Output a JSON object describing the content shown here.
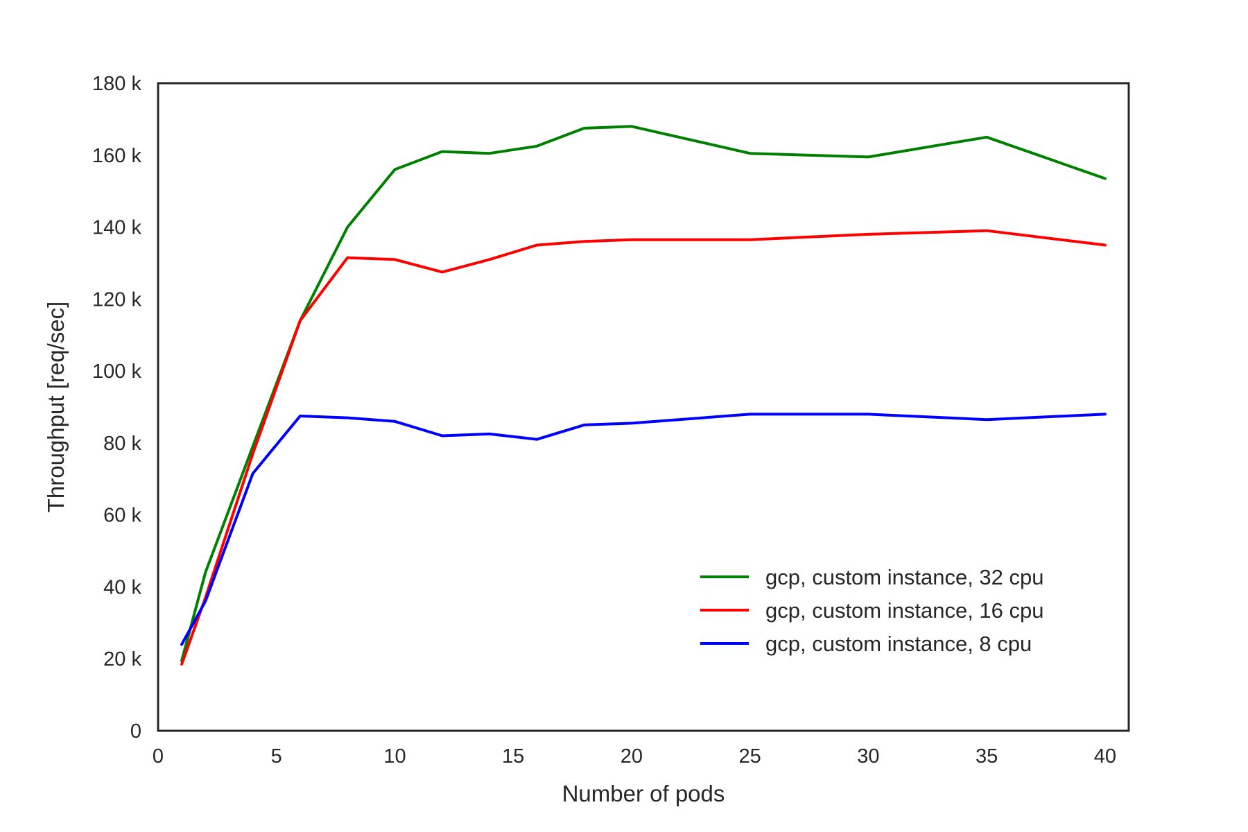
{
  "chart_data": {
    "type": "line",
    "title": "",
    "xlabel": "Number of pods",
    "ylabel": "Throughput [req/sec]",
    "xlim": [
      0,
      41
    ],
    "ylim": [
      0,
      180000
    ],
    "xticks": [
      0,
      5,
      10,
      15,
      20,
      25,
      30,
      35,
      40
    ],
    "xtick_labels": [
      "0",
      "5",
      "10",
      "15",
      "20",
      "25",
      "30",
      "35",
      "40"
    ],
    "yticks": [
      0,
      20000,
      40000,
      60000,
      80000,
      100000,
      120000,
      140000,
      160000,
      180000
    ],
    "ytick_labels": [
      "0",
      "20 k",
      "40 k",
      "60 k",
      "80 k",
      "100 k",
      "120 k",
      "140 k",
      "160 k",
      "180 k"
    ],
    "grid": false,
    "legend_position": "lower-right",
    "series": [
      {
        "name": "gcp, custom instance, 32 cpu",
        "color": "#008000",
        "x": [
          1,
          2,
          4,
          6,
          8,
          10,
          12,
          14,
          16,
          18,
          20,
          25,
          30,
          35,
          40
        ],
        "y": [
          19500,
          44000,
          79000,
          114000,
          140000,
          156000,
          161000,
          160500,
          162500,
          167500,
          168000,
          160500,
          159500,
          165000,
          153500
        ]
      },
      {
        "name": "gcp, custom instance, 16 cpu",
        "color": "#ff0000",
        "x": [
          1,
          2,
          4,
          6,
          8,
          10,
          12,
          14,
          16,
          18,
          20,
          25,
          30,
          35,
          40
        ],
        "y": [
          18500,
          37000,
          77000,
          114000,
          131500,
          131000,
          127500,
          131000,
          135000,
          136000,
          136500,
          136500,
          138000,
          139000,
          135000
        ]
      },
      {
        "name": "gcp, custom instance, 8 cpu",
        "color": "#0000ff",
        "x": [
          1,
          2,
          4,
          6,
          8,
          10,
          12,
          14,
          16,
          18,
          20,
          25,
          30,
          35,
          40
        ],
        "y": [
          24000,
          36000,
          71500,
          87500,
          87000,
          86000,
          82000,
          82500,
          81000,
          85000,
          85500,
          88000,
          88000,
          86500,
          88000
        ]
      }
    ]
  }
}
